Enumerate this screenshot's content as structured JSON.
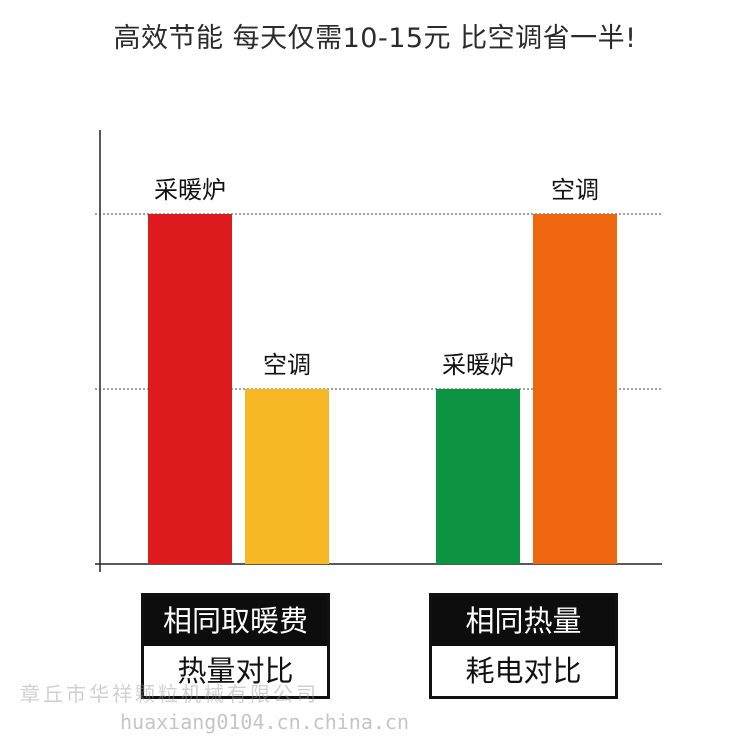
{
  "title": "高效节能 每天仅需10-15元 比空调省一半!",
  "chart_data": {
    "type": "bar",
    "groups": [
      {
        "header": "相同取暖费",
        "subheader": "热量对比",
        "bars": [
          {
            "label": "采暖炉",
            "value": 2,
            "color": "#dd1a1d"
          },
          {
            "label": "空调",
            "value": 1,
            "color": "#f7b825"
          }
        ]
      },
      {
        "header": "相同热量",
        "subheader": "耗电对比",
        "bars": [
          {
            "label": "采暖炉",
            "value": 1,
            "color": "#0d9443"
          },
          {
            "label": "空调",
            "value": 2,
            "color": "#ee6610"
          }
        ]
      }
    ],
    "ylim": [
      0,
      2
    ],
    "reference_lines": [
      1,
      2
    ],
    "grid": false
  },
  "watermark": {
    "company": "章丘市华祥颗粒机械有限公司",
    "url": "huaxiang0104.cn.china.cn"
  }
}
